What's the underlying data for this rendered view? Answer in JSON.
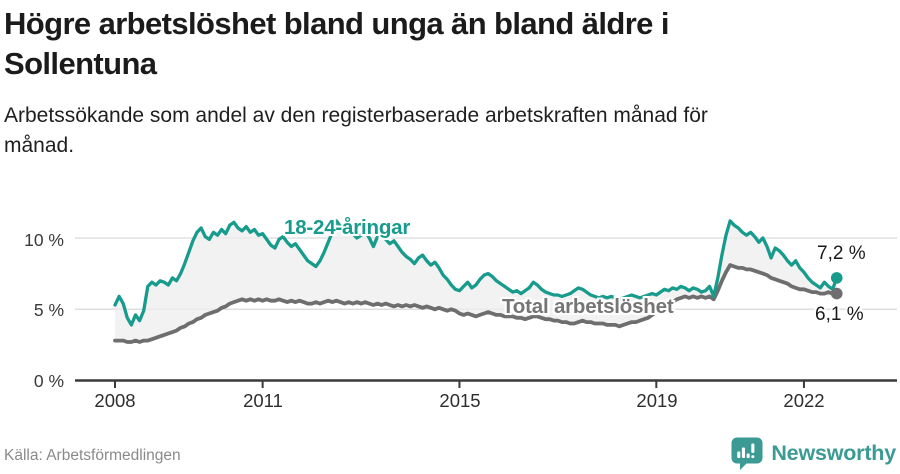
{
  "header": {
    "title": "Högre arbetslöshet bland unga än bland äldre i Sollentuna",
    "title_lines": [
      "Högre arbetslöshet bland unga än bland äldre i",
      "Sollentuna"
    ],
    "subtitle": "Arbetssökande som andel av den registerbaserade arbetskraften månad för månad.",
    "subtitle_lines": [
      "Arbetssökande som andel av den registerbaserade arbetskraften månad för",
      "månad."
    ]
  },
  "chart_data": {
    "type": "line",
    "title": "Högre arbetslöshet bland unga än bland äldre i Sollentuna",
    "subtitle": "Arbetssökande som andel av den registerbaserade arbetskraften månad för månad.",
    "unit": "%",
    "frequency": "monthly",
    "x_start_year": 2008,
    "x_end": "2022-09",
    "x_ticks": [
      2008,
      2011,
      2015,
      2019,
      2022
    ],
    "x_tick_labels": [
      "2008",
      "2011",
      "2015",
      "2019",
      "2022"
    ],
    "y_ticks": [
      0,
      5,
      10
    ],
    "y_tick_labels": [
      "0 %",
      "5 %",
      "10 %"
    ],
    "ylim": [
      0,
      12.6
    ],
    "grid": true,
    "legend_position": "inline-labels",
    "fill_between_color": "#ededed",
    "series": [
      {
        "name": "18-24-åringar",
        "color": "#169b8c",
        "end_label": "7,2 %",
        "end_value": 7.2,
        "values": [
          5.3,
          5.9,
          5.4,
          4.4,
          3.9,
          4.6,
          4.2,
          4.9,
          6.6,
          6.9,
          6.7,
          7.0,
          6.9,
          6.7,
          7.2,
          7.0,
          7.5,
          8.2,
          9.0,
          9.8,
          10.4,
          10.7,
          10.1,
          9.9,
          10.4,
          10.2,
          10.6,
          10.3,
          10.9,
          11.1,
          10.7,
          10.5,
          10.8,
          10.4,
          10.6,
          10.2,
          10.3,
          9.9,
          9.5,
          9.3,
          9.9,
          10.1,
          9.7,
          9.4,
          9.6,
          9.2,
          8.8,
          8.4,
          8.2,
          8.0,
          8.4,
          9.0,
          9.7,
          10.4,
          11.2,
          10.8,
          10.5,
          10.7,
          10.3,
          10.0,
          10.2,
          10.5,
          10.0,
          9.4,
          10.1,
          10.3,
          9.9,
          9.6,
          9.8,
          9.4,
          9.0,
          8.7,
          8.5,
          8.2,
          8.6,
          8.8,
          8.4,
          8.1,
          8.3,
          7.9,
          7.4,
          7.1,
          6.7,
          6.4,
          6.3,
          6.6,
          6.9,
          6.5,
          6.7,
          7.1,
          7.4,
          7.5,
          7.3,
          7.0,
          6.8,
          6.6,
          6.4,
          6.2,
          6.3,
          6.1,
          6.3,
          6.5,
          6.9,
          6.7,
          6.4,
          6.2,
          6.1,
          6.0,
          6.0,
          5.9,
          6.0,
          6.1,
          6.3,
          6.5,
          6.4,
          6.2,
          6.0,
          5.9,
          5.8,
          5.9,
          5.8,
          5.9,
          5.8,
          5.7,
          5.8,
          5.9,
          6.0,
          5.9,
          5.8,
          5.9,
          6.0,
          6.1,
          6.0,
          6.2,
          6.4,
          6.3,
          6.5,
          6.4,
          6.6,
          6.5,
          6.3,
          6.5,
          6.4,
          6.2,
          6.3,
          6.6,
          5.9,
          7.2,
          8.8,
          10.2,
          11.2,
          10.9,
          10.7,
          10.4,
          10.2,
          10.4,
          10.1,
          9.7,
          10.0,
          9.4,
          8.6,
          9.3,
          9.1,
          8.8,
          8.4,
          8.1,
          8.4,
          7.9,
          7.6,
          7.2,
          6.9,
          6.7,
          6.5,
          6.9,
          6.6,
          6.4,
          7.2
        ]
      },
      {
        "name": "Total arbetslöshet",
        "color": "#6e6e6e",
        "end_label": "6,1 %",
        "end_value": 6.1,
        "values": [
          2.8,
          2.8,
          2.8,
          2.7,
          2.7,
          2.8,
          2.7,
          2.8,
          2.8,
          2.9,
          3.0,
          3.1,
          3.2,
          3.3,
          3.4,
          3.5,
          3.7,
          3.8,
          4.0,
          4.1,
          4.3,
          4.4,
          4.6,
          4.7,
          4.8,
          4.9,
          5.1,
          5.2,
          5.4,
          5.5,
          5.6,
          5.7,
          5.6,
          5.7,
          5.6,
          5.7,
          5.6,
          5.7,
          5.6,
          5.6,
          5.7,
          5.6,
          5.5,
          5.6,
          5.5,
          5.6,
          5.5,
          5.4,
          5.4,
          5.5,
          5.4,
          5.5,
          5.6,
          5.5,
          5.6,
          5.5,
          5.4,
          5.5,
          5.4,
          5.5,
          5.4,
          5.5,
          5.4,
          5.3,
          5.4,
          5.3,
          5.4,
          5.3,
          5.2,
          5.3,
          5.2,
          5.3,
          5.2,
          5.3,
          5.2,
          5.1,
          5.2,
          5.1,
          5.0,
          5.1,
          5.0,
          4.9,
          5.0,
          4.9,
          4.7,
          4.6,
          4.7,
          4.6,
          4.5,
          4.6,
          4.7,
          4.8,
          4.7,
          4.6,
          4.6,
          4.5,
          4.5,
          4.5,
          4.4,
          4.4,
          4.3,
          4.4,
          4.5,
          4.5,
          4.4,
          4.3,
          4.3,
          4.2,
          4.2,
          4.1,
          4.1,
          4.0,
          4.0,
          4.1,
          4.2,
          4.1,
          4.1,
          4.0,
          4.0,
          4.0,
          3.9,
          3.9,
          3.9,
          3.8,
          3.9,
          4.0,
          4.1,
          4.1,
          4.2,
          4.3,
          4.4,
          4.6,
          4.8,
          5.0,
          5.2,
          5.4,
          5.5,
          5.7,
          5.8,
          5.9,
          5.8,
          5.9,
          5.8,
          5.9,
          5.8,
          5.9,
          5.7,
          6.3,
          7.0,
          7.6,
          8.1,
          8.0,
          7.9,
          7.9,
          7.8,
          7.8,
          7.7,
          7.6,
          7.5,
          7.4,
          7.2,
          7.1,
          7.0,
          6.9,
          6.8,
          6.6,
          6.5,
          6.4,
          6.4,
          6.3,
          6.2,
          6.2,
          6.1,
          6.1,
          6.2,
          6.1,
          6.1
        ]
      }
    ]
  },
  "colors": {
    "accent_teal": "#169b8c",
    "series_gray": "#6e6e6e",
    "gridline": "#d9d9d9",
    "axis": "#3a3a3a",
    "fill_between": "#ededed",
    "brand_teal": "#3b9a93",
    "source_gray": "#8a8a8a"
  },
  "footer": {
    "source": "Källa: Arbetsförmedlingen",
    "brand_name": "Newsworthy",
    "brand_icon": "bar-chart-speech-bubble-icon"
  }
}
